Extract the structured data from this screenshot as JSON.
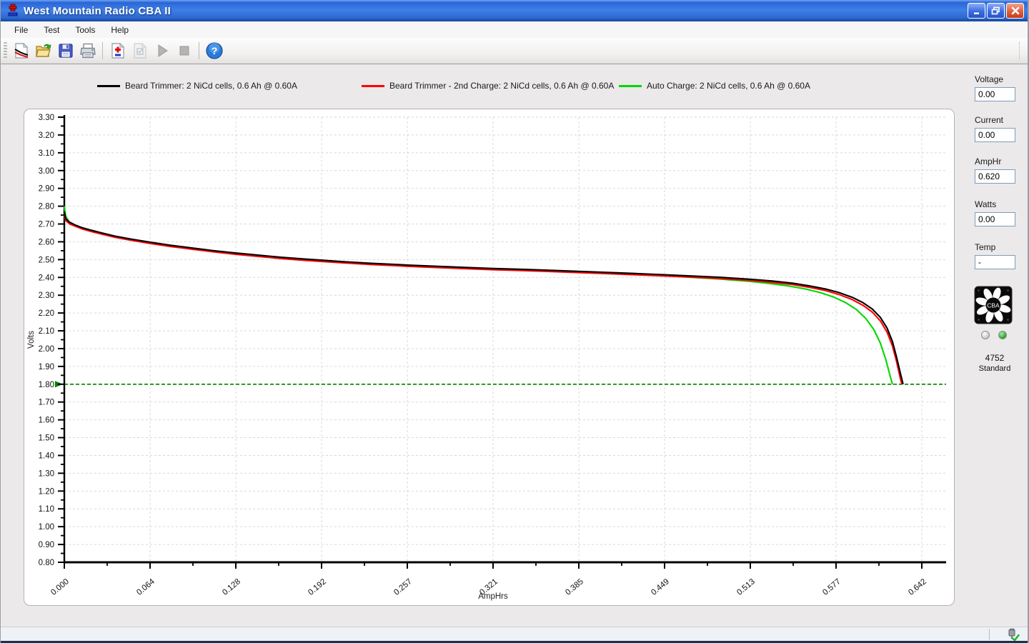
{
  "window": {
    "title": "West Mountain Radio CBA II"
  },
  "menu": {
    "items": [
      "File",
      "Test",
      "Tools",
      "Help"
    ]
  },
  "toolbar": {
    "buttons": [
      {
        "name": "new-graph"
      },
      {
        "name": "open"
      },
      {
        "name": "save"
      },
      {
        "name": "print"
      },
      {
        "name": "new-test"
      },
      {
        "name": "test-settings"
      },
      {
        "name": "start-test"
      },
      {
        "name": "stop-test"
      },
      {
        "name": "help"
      }
    ],
    "help_glyph": "?",
    "plus_minus_glyph": "±"
  },
  "legend": {
    "entries": [
      {
        "label": "Beard Trimmer: 2 NiCd cells, 0.6 Ah @ 0.60A",
        "color": "#000000"
      },
      {
        "label": "Beard Trimmer - 2nd Charge: 2 NiCd cells, 0.6 Ah @ 0.60A",
        "color": "#ff0000"
      },
      {
        "label": "Auto Charge: 2 NiCd cells, 0.6 Ah @ 0.60A",
        "color": "#00d800"
      }
    ]
  },
  "side_panel": {
    "fields": [
      {
        "label": "Voltage",
        "value": "0.00"
      },
      {
        "label": "Current",
        "value": "0.00"
      },
      {
        "label": "AmpHr",
        "value": "0.620"
      },
      {
        "label": "Watts",
        "value": "0.00"
      },
      {
        "label": "Temp",
        "value": "-"
      }
    ],
    "device": {
      "logo_text": "CBA",
      "serial": "4752",
      "model": "Standard",
      "leds": [
        {
          "name": "status-led-off",
          "color": "#cccccc"
        },
        {
          "name": "status-led-on",
          "color": "#2aa42a"
        }
      ]
    }
  },
  "statusbar": {
    "usb_icon": "usb-connected-check"
  },
  "chart_data": {
    "type": "line",
    "title": "",
    "xlabel": "AmpHrs",
    "ylabel": "Volts",
    "x_tick_labels": [
      "0.000",
      "0.064",
      "0.128",
      "0.192",
      "0.257",
      "0.321",
      "0.385",
      "0.449",
      "0.513",
      "0.577",
      "0.642"
    ],
    "x_max": 0.642,
    "ylim": [
      0.8,
      3.3
    ],
    "y_tick_step": 0.1,
    "y_minor_step": 0.05,
    "grid": true,
    "legend_position": "top",
    "cutoff_line": {
      "y": 1.8,
      "color": "#008000",
      "style": "dashed"
    },
    "series": [
      {
        "name": "Beard Trimmer: 2 NiCd cells, 0.6 Ah @ 0.60A",
        "color": "#000000",
        "points": [
          [
            0.0,
            2.77
          ],
          [
            0.001,
            2.73
          ],
          [
            0.004,
            2.71
          ],
          [
            0.008,
            2.695
          ],
          [
            0.013,
            2.68
          ],
          [
            0.02,
            2.665
          ],
          [
            0.028,
            2.65
          ],
          [
            0.038,
            2.632
          ],
          [
            0.05,
            2.615
          ],
          [
            0.064,
            2.598
          ],
          [
            0.08,
            2.58
          ],
          [
            0.096,
            2.565
          ],
          [
            0.112,
            2.55
          ],
          [
            0.128,
            2.537
          ],
          [
            0.145,
            2.525
          ],
          [
            0.162,
            2.513
          ],
          [
            0.18,
            2.503
          ],
          [
            0.192,
            2.497
          ],
          [
            0.21,
            2.488
          ],
          [
            0.23,
            2.479
          ],
          [
            0.25,
            2.472
          ],
          [
            0.257,
            2.469
          ],
          [
            0.28,
            2.462
          ],
          [
            0.3,
            2.456
          ],
          [
            0.321,
            2.45
          ],
          [
            0.34,
            2.446
          ],
          [
            0.36,
            2.441
          ],
          [
            0.385,
            2.434
          ],
          [
            0.41,
            2.427
          ],
          [
            0.43,
            2.421
          ],
          [
            0.449,
            2.415
          ],
          [
            0.47,
            2.408
          ],
          [
            0.49,
            2.401
          ],
          [
            0.513,
            2.39
          ],
          [
            0.53,
            2.38
          ],
          [
            0.545,
            2.368
          ],
          [
            0.558,
            2.352
          ],
          [
            0.57,
            2.335
          ],
          [
            0.58,
            2.315
          ],
          [
            0.59,
            2.288
          ],
          [
            0.598,
            2.258
          ],
          [
            0.605,
            2.222
          ],
          [
            0.611,
            2.175
          ],
          [
            0.616,
            2.115
          ],
          [
            0.62,
            2.04
          ],
          [
            0.623,
            1.955
          ],
          [
            0.626,
            1.86
          ],
          [
            0.628,
            1.8
          ]
        ]
      },
      {
        "name": "Beard Trimmer - 2nd Charge: 2 NiCd cells, 0.6 Ah @ 0.60A",
        "color": "#ff0000",
        "points": [
          [
            0.0,
            2.75
          ],
          [
            0.001,
            2.72
          ],
          [
            0.004,
            2.7
          ],
          [
            0.008,
            2.688
          ],
          [
            0.013,
            2.673
          ],
          [
            0.02,
            2.658
          ],
          [
            0.028,
            2.643
          ],
          [
            0.038,
            2.625
          ],
          [
            0.05,
            2.608
          ],
          [
            0.064,
            2.591
          ],
          [
            0.08,
            2.573
          ],
          [
            0.096,
            2.558
          ],
          [
            0.112,
            2.543
          ],
          [
            0.128,
            2.53
          ],
          [
            0.145,
            2.518
          ],
          [
            0.162,
            2.506
          ],
          [
            0.18,
            2.496
          ],
          [
            0.192,
            2.49
          ],
          [
            0.21,
            2.481
          ],
          [
            0.23,
            2.472
          ],
          [
            0.25,
            2.465
          ],
          [
            0.257,
            2.462
          ],
          [
            0.28,
            2.455
          ],
          [
            0.3,
            2.449
          ],
          [
            0.321,
            2.443
          ],
          [
            0.34,
            2.439
          ],
          [
            0.36,
            2.434
          ],
          [
            0.385,
            2.427
          ],
          [
            0.41,
            2.42
          ],
          [
            0.43,
            2.414
          ],
          [
            0.449,
            2.408
          ],
          [
            0.47,
            2.401
          ],
          [
            0.49,
            2.394
          ],
          [
            0.513,
            2.383
          ],
          [
            0.53,
            2.372
          ],
          [
            0.545,
            2.36
          ],
          [
            0.558,
            2.344
          ],
          [
            0.57,
            2.326
          ],
          [
            0.58,
            2.304
          ],
          [
            0.59,
            2.275
          ],
          [
            0.598,
            2.243
          ],
          [
            0.605,
            2.205
          ],
          [
            0.611,
            2.155
          ],
          [
            0.616,
            2.092
          ],
          [
            0.62,
            2.015
          ],
          [
            0.623,
            1.93
          ],
          [
            0.626,
            1.83
          ],
          [
            0.627,
            1.8
          ]
        ]
      },
      {
        "name": "Auto Charge: 2 NiCd cells, 0.6 Ah @ 0.60A",
        "color": "#00d800",
        "points": [
          [
            0.0,
            2.8
          ],
          [
            0.001,
            2.745
          ],
          [
            0.004,
            2.705
          ],
          [
            0.008,
            2.69
          ],
          [
            0.013,
            2.675
          ],
          [
            0.02,
            2.66
          ],
          [
            0.028,
            2.645
          ],
          [
            0.038,
            2.628
          ],
          [
            0.05,
            2.61
          ],
          [
            0.064,
            2.593
          ],
          [
            0.08,
            2.576
          ],
          [
            0.096,
            2.561
          ],
          [
            0.112,
            2.547
          ],
          [
            0.128,
            2.534
          ],
          [
            0.145,
            2.522
          ],
          [
            0.162,
            2.51
          ],
          [
            0.18,
            2.5
          ],
          [
            0.192,
            2.494
          ],
          [
            0.21,
            2.485
          ],
          [
            0.23,
            2.477
          ],
          [
            0.25,
            2.47
          ],
          [
            0.257,
            2.467
          ],
          [
            0.28,
            2.46
          ],
          [
            0.3,
            2.454
          ],
          [
            0.321,
            2.448
          ],
          [
            0.34,
            2.443
          ],
          [
            0.36,
            2.438
          ],
          [
            0.385,
            2.431
          ],
          [
            0.41,
            2.423
          ],
          [
            0.43,
            2.416
          ],
          [
            0.449,
            2.409
          ],
          [
            0.47,
            2.4
          ],
          [
            0.49,
            2.391
          ],
          [
            0.513,
            2.378
          ],
          [
            0.528,
            2.366
          ],
          [
            0.542,
            2.352
          ],
          [
            0.555,
            2.335
          ],
          [
            0.566,
            2.315
          ],
          [
            0.576,
            2.29
          ],
          [
            0.585,
            2.258
          ],
          [
            0.593,
            2.22
          ],
          [
            0.6,
            2.17
          ],
          [
            0.606,
            2.108
          ],
          [
            0.611,
            2.03
          ],
          [
            0.615,
            1.94
          ],
          [
            0.618,
            1.855
          ],
          [
            0.62,
            1.8
          ]
        ]
      }
    ]
  }
}
